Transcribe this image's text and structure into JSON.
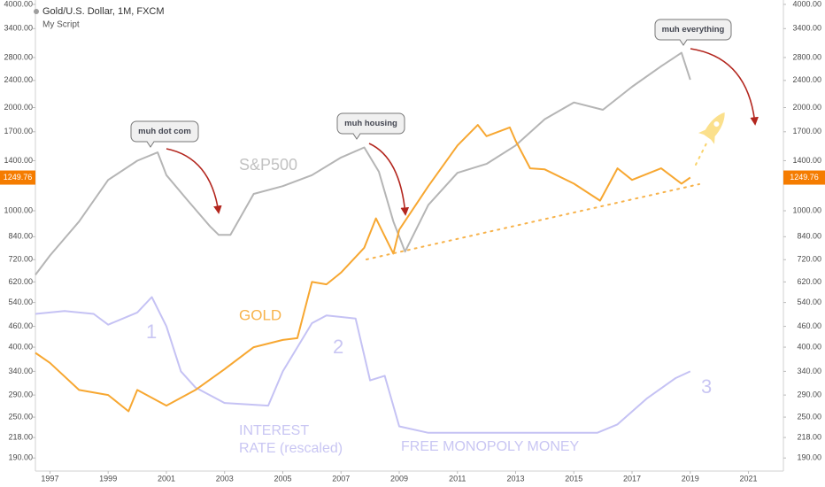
{
  "chart_data": {
    "type": "line",
    "header": {
      "title": "Gold/U.S. Dollar, 1M, FXCM",
      "subtitle": "My Script"
    },
    "log_scale": true,
    "grid": false,
    "xlim": [
      1996.5,
      2022.2
    ],
    "xticks": [
      1997,
      1999,
      2001,
      2003,
      2005,
      2007,
      2009,
      2011,
      2013,
      2015,
      2017,
      2019,
      2021
    ],
    "ylim": [
      174,
      4120
    ],
    "yticks": [
      {
        "value": 4000,
        "label": "4000.00"
      },
      {
        "value": 3400,
        "label": "3400.00"
      },
      {
        "value": 2800,
        "label": "2800.00"
      },
      {
        "value": 2400,
        "label": "2400.00"
      },
      {
        "value": 2000,
        "label": "2000.00"
      },
      {
        "value": 1700,
        "label": "1700.00"
      },
      {
        "value": 1400,
        "label": "1400.00"
      },
      {
        "value": 1000,
        "label": "1000.00"
      },
      {
        "value": 840,
        "label": "840.00"
      },
      {
        "value": 720,
        "label": "720.00"
      },
      {
        "value": 620,
        "label": "620.00"
      },
      {
        "value": 540,
        "label": "540.00"
      },
      {
        "value": 460,
        "label": "460.00"
      },
      {
        "value": 400,
        "label": "400.00"
      },
      {
        "value": 340,
        "label": "340.00"
      },
      {
        "value": 290,
        "label": "290.00"
      },
      {
        "value": 250,
        "label": "250.00"
      },
      {
        "value": 218,
        "label": "218.00"
      },
      {
        "value": 190,
        "label": "190.00"
      }
    ],
    "series": [
      {
        "color": "#f7a731",
        "x": [
          1996.5,
          1997,
          1998,
          1999,
          1999.7,
          2000,
          2001,
          2002,
          2003,
          2004,
          2005,
          2005.5,
          2006,
          2006.5,
          2007,
          2007.8,
          2008.2,
          2008.8,
          2009,
          2010,
          2011,
          2011.7,
          2012,
          2012.8,
          2013,
          2013.5,
          2014,
          2015,
          2015.9,
          2016.5,
          2017,
          2018,
          2018.7,
          2019
        ],
        "values": [
          385,
          360,
          300,
          290,
          260,
          300,
          270,
          300,
          345,
          400,
          420,
          425,
          620,
          610,
          660,
          780,
          950,
          750,
          880,
          1180,
          1550,
          1780,
          1650,
          1750,
          1600,
          1330,
          1320,
          1200,
          1070,
          1330,
          1230,
          1330,
          1200,
          1249.76
        ]
      },
      {
        "color": "#b5b5b5",
        "x": [
          1996.5,
          1997,
          1998,
          1999,
          2000,
          2000.7,
          2001,
          2001.7,
          2002.5,
          2002.8,
          2003.2,
          2004,
          2005,
          2006,
          2007,
          2007.8,
          2008.3,
          2008.8,
          2009.2,
          2010,
          2011,
          2012,
          2013,
          2014,
          2015,
          2016,
          2017,
          2018,
          2018.7,
          2019
        ],
        "values": [
          650,
          740,
          930,
          1230,
          1400,
          1480,
          1270,
          1080,
          900,
          850,
          850,
          1120,
          1180,
          1270,
          1430,
          1530,
          1300,
          930,
          760,
          1040,
          1290,
          1370,
          1550,
          1850,
          2070,
          1970,
          2300,
          2640,
          2890,
          2410
        ]
      },
      {
        "color": "#c5c2f4",
        "x": [
          1996.5,
          1997.5,
          1998.5,
          1999,
          2000,
          2000.5,
          2001,
          2001.5,
          2002,
          2003,
          2004.5,
          2005,
          2006,
          2006.5,
          2007.5,
          2008,
          2008.5,
          2009,
          2010,
          2015.8,
          2016.5,
          2017.5,
          2018.5,
          2019
        ],
        "values": [
          500,
          510,
          500,
          465,
          505,
          560,
          460,
          340,
          305,
          275,
          270,
          340,
          470,
          495,
          485,
          320,
          330,
          235,
          225,
          225,
          238,
          283,
          325,
          340
        ]
      }
    ],
    "callouts": [
      "muh dot com",
      "muh housing",
      "muh everything"
    ],
    "annotations": [
      "S&P500",
      "GOLD",
      "1",
      "2",
      "3",
      "INTEREST",
      "RATE (rescaled)",
      "FREE MONOPOLY MONEY"
    ]
  }
}
